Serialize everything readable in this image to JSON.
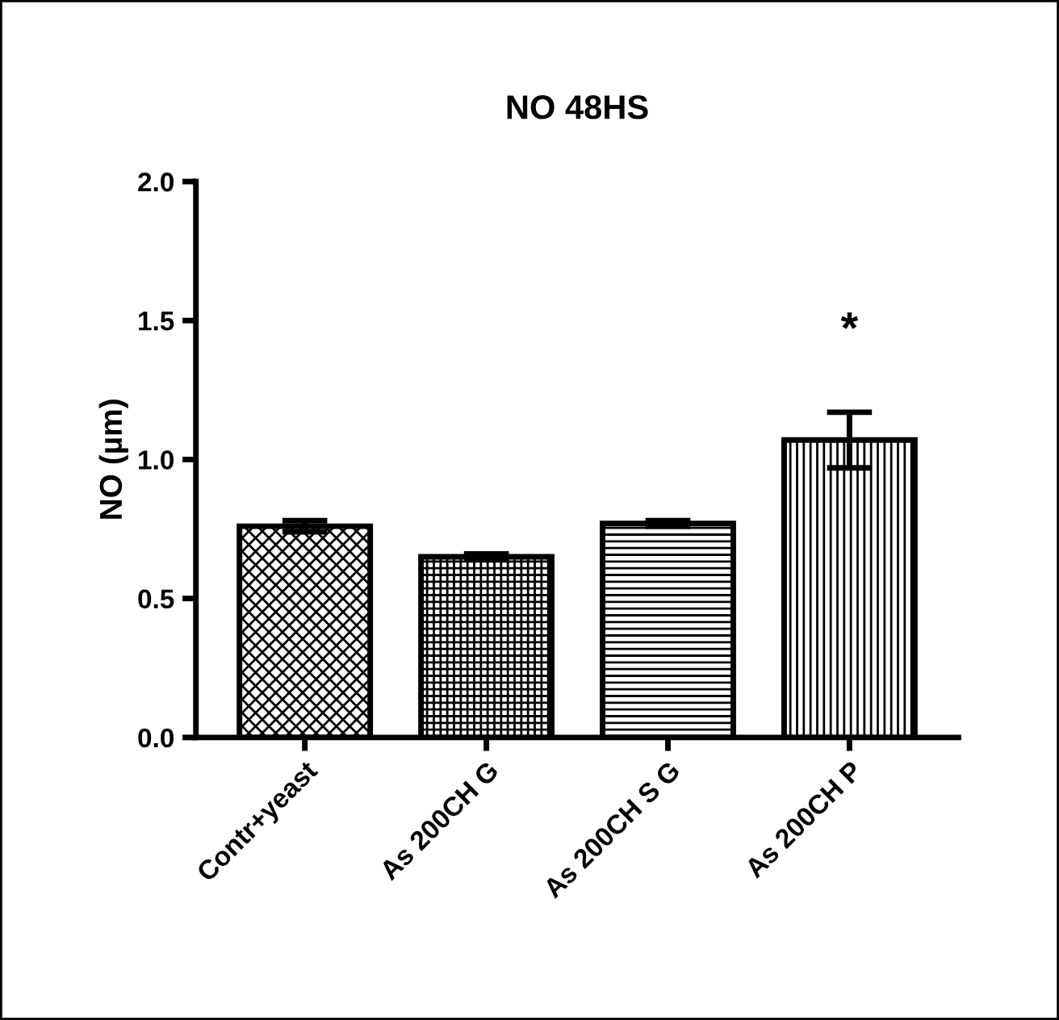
{
  "chart_data": {
    "type": "bar",
    "title": "NO 48HS",
    "ylabel": "NO (µm)",
    "categories": [
      "Contr+yeast",
      "As 200CH G",
      "As 200CH S G",
      "As 200CH P"
    ],
    "values": [
      0.76,
      0.65,
      0.77,
      1.07
    ],
    "errors": [
      0.02,
      0.01,
      0.01,
      0.1
    ],
    "color": "#000000",
    "ylim": [
      0,
      2.0
    ],
    "yticks": [
      {
        "value": 0,
        "label": "0.0"
      },
      0.5,
      {
        "value": 1,
        "label": "1.0"
      },
      1.5,
      {
        "value": 2,
        "label": "2.0"
      }
    ],
    "grid": false,
    "annotations": [
      "*"
    ]
  }
}
